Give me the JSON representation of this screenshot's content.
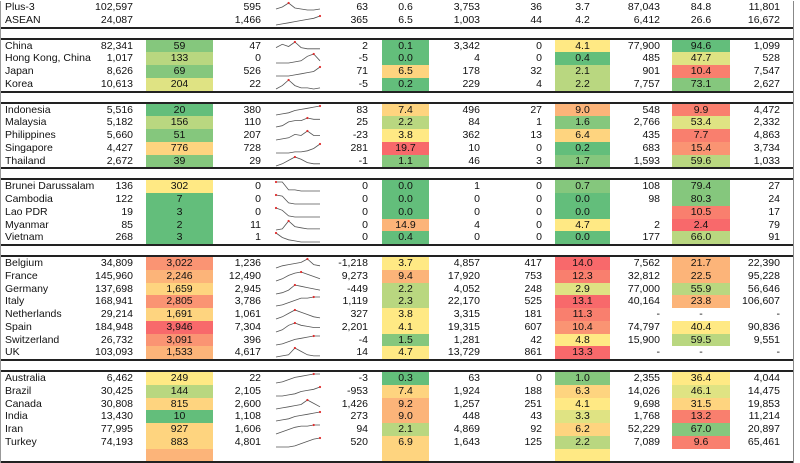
{
  "palette": {
    "G": "#63be7b",
    "G2": "#85c77d",
    "LG": "#b9d780",
    "Y2": "#dfe383",
    "Y": "#ffe984",
    "LO": "#fed47f",
    "O": "#fcb479",
    "O2": "#fa9473",
    "R2": "#f97f6e",
    "R": "#f8696b",
    "N": "#ffffff"
  },
  "groups": [
    [
      {
        "name": "Plus-3",
        "c1": "102,597",
        "c2": "",
        "k2": "N",
        "c3": "595",
        "c4": "63",
        "c5": "0.6",
        "k5": "N",
        "c6": "3,753",
        "c7": "36",
        "c8": "3.7",
        "k8": "N",
        "c9": "87,043",
        "c10": "84.8",
        "k10": "N",
        "c11": "11,801",
        "trend": [
          3,
          5,
          9,
          4,
          3,
          2,
          2,
          3
        ]
      },
      {
        "name": "ASEAN",
        "c1": "24,087",
        "c2": "",
        "k2": "N",
        "c3": "1,466",
        "c4": "365",
        "c5": "6.5",
        "k5": "N",
        "c6": "1,003",
        "c7": "44",
        "c8": "4.2",
        "k8": "N",
        "c9": "6,412",
        "c10": "26.6",
        "k10": "N",
        "c11": "16,672",
        "trend": [
          0,
          1,
          2,
          3,
          4,
          5,
          6,
          8
        ]
      }
    ],
    [
      {
        "name": "China",
        "c1": "82,341",
        "c2": "59",
        "k2": "G2",
        "c3": "47",
        "c4": "2",
        "c5": "0.1",
        "k5": "G",
        "c6": "3,342",
        "c7": "0",
        "c8": "4.1",
        "k8": "Y",
        "c9": "77,900",
        "c10": "94.6",
        "k10": "G",
        "c11": "1,099",
        "trend": [
          3,
          6,
          4,
          8,
          3,
          2,
          2,
          2
        ]
      },
      {
        "name": "Hong Kong, China",
        "c1": "1,017",
        "c2": "133",
        "k2": "LG",
        "c3": "0",
        "c4": "-5",
        "c5": "0.0",
        "k5": "G",
        "c6": "4",
        "c7": "0",
        "c8": "0.4",
        "k8": "G",
        "c9": "485",
        "c10": "47.7",
        "k10": "Y2",
        "c11": "528",
        "trend": [
          0,
          0,
          0,
          1,
          2,
          6,
          8,
          2
        ]
      },
      {
        "name": "Japan",
        "c1": "8,626",
        "c2": "69",
        "k2": "G2",
        "c3": "526",
        "c4": "71",
        "c5": "6.5",
        "k5": "LO",
        "c6": "178",
        "c7": "32",
        "c8": "2.1",
        "k8": "LG",
        "c9": "901",
        "c10": "10.4",
        "k10": "R2",
        "c11": "7,547",
        "trend": [
          0,
          0,
          0,
          1,
          2,
          3,
          4,
          8
        ]
      },
      {
        "name": "Korea",
        "c1": "10,613",
        "c2": "204",
        "k2": "Y2",
        "c3": "22",
        "c4": "-5",
        "c5": "0.2",
        "k5": "G",
        "c6": "229",
        "c7": "4",
        "c8": "2.2",
        "k8": "LG",
        "c9": "7,757",
        "c10": "73.1",
        "k10": "G2",
        "c11": "2,627",
        "trend": [
          0,
          3,
          8,
          3,
          1,
          1,
          0,
          1
        ]
      }
    ],
    [
      {
        "name": "Indonesia",
        "c1": "5,516",
        "c2": "20",
        "k2": "G",
        "c3": "380",
        "c4": "83",
        "c5": "7.4",
        "k5": "LO",
        "c6": "496",
        "c7": "27",
        "c8": "9.0",
        "k8": "O",
        "c9": "548",
        "c10": "9.9",
        "k10": "R2",
        "c11": "4,472",
        "trend": [
          0,
          1,
          2,
          4,
          5,
          6,
          7,
          8
        ]
      },
      {
        "name": "Malaysia",
        "c1": "5,182",
        "c2": "156",
        "k2": "LG",
        "c3": "110",
        "c4": "25",
        "c5": "2.2",
        "k5": "LG",
        "c6": "84",
        "c7": "1",
        "c8": "1.6",
        "k8": "G2",
        "c9": "2,766",
        "c10": "53.4",
        "k10": "Y2",
        "c11": "2,332",
        "trend": [
          0,
          1,
          4,
          5,
          5,
          7,
          6,
          6
        ]
      },
      {
        "name": "Philippines",
        "c1": "5,660",
        "c2": "51",
        "k2": "G2",
        "c3": "207",
        "c4": "-23",
        "c5": "3.8",
        "k5": "Y",
        "c6": "362",
        "c7": "13",
        "c8": "6.4",
        "k8": "LO",
        "c9": "435",
        "c10": "7.7",
        "k10": "R2",
        "c11": "4,863",
        "trend": [
          0,
          1,
          2,
          5,
          4,
          8,
          4,
          4
        ]
      },
      {
        "name": "Singapore",
        "c1": "4,427",
        "c2": "776",
        "k2": "LO",
        "c3": "728",
        "c4": "281",
        "c5": "19.7",
        "k5": "R",
        "c6": "10",
        "c7": "0",
        "c8": "0.2",
        "k8": "G",
        "c9": "683",
        "c10": "15.4",
        "k10": "O2",
        "c11": "3,734",
        "trend": [
          0,
          0,
          0,
          1,
          1,
          2,
          4,
          8
        ]
      },
      {
        "name": "Thailand",
        "c1": "2,672",
        "c2": "39",
        "k2": "G2",
        "c3": "29",
        "c4": "-1",
        "c5": "1.1",
        "k5": "G2",
        "c6": "46",
        "c7": "3",
        "c8": "1.7",
        "k8": "G2",
        "c9": "1,593",
        "c10": "59.6",
        "k10": "LG",
        "c11": "1,033",
        "trend": [
          0,
          2,
          5,
          8,
          6,
          3,
          2,
          2
        ]
      }
    ],
    [
      {
        "name": "Brunei Darussalam",
        "c1": "136",
        "c2": "302",
        "k2": "Y",
        "c3": "0",
        "c4": "0",
        "c5": "0.0",
        "k5": "G",
        "c6": "1",
        "c7": "0",
        "c8": "0.7",
        "k8": "G2",
        "c9": "108",
        "c10": "79.4",
        "k10": "G2",
        "c11": "27",
        "trend": [
          8,
          8,
          1,
          1,
          0,
          0,
          0,
          0
        ]
      },
      {
        "name": "Cambodia",
        "c1": "122",
        "c2": "7",
        "k2": "G",
        "c3": "0",
        "c4": "0",
        "c5": "0.0",
        "k5": "G",
        "c6": "0",
        "c7": "0",
        "c8": "0.0",
        "k8": "G",
        "c9": "98",
        "c10": "80.3",
        "k10": "G2",
        "c11": "24",
        "trend": [
          8,
          7,
          1,
          0,
          0,
          0,
          0,
          0
        ]
      },
      {
        "name": "Lao PDR",
        "c1": "19",
        "c2": "3",
        "k2": "G",
        "c3": "0",
        "c4": "0",
        "c5": "0.0",
        "k5": "G",
        "c6": "0",
        "c7": "0",
        "c8": "0.0",
        "k8": "G",
        "c9": "",
        "c10": "10.5",
        "k10": "R2",
        "c11": "17",
        "trend": [
          8,
          6,
          1,
          0,
          0,
          0,
          0,
          0
        ]
      },
      {
        "name": "Myanmar",
        "c1": "85",
        "c2": "2",
        "k2": "G",
        "c3": "11",
        "c4": "0",
        "c5": "14.9",
        "k5": "O",
        "c6": "4",
        "c7": "0",
        "c8": "4.7",
        "k8": "Y",
        "c9": "2",
        "c10": "2.4",
        "k10": "R",
        "c11": "79",
        "trend": [
          0,
          1,
          8,
          3,
          2,
          1,
          1,
          1
        ]
      },
      {
        "name": "Vietnam",
        "c1": "268",
        "c2": "3",
        "k2": "G",
        "c3": "1",
        "c4": "0",
        "c5": "0.4",
        "k5": "G",
        "c6": "0",
        "c7": "0",
        "c8": "0.0",
        "k8": "G",
        "c9": "177",
        "c10": "66.0",
        "k10": "LG",
        "c11": "91",
        "trend": [
          8,
          4,
          2,
          1,
          0,
          0,
          0,
          0
        ]
      }
    ],
    [
      {
        "name": "Belgium",
        "c1": "34,809",
        "c2": "3,022",
        "k2": "O2",
        "c3": "1,236",
        "c4": "-1,218",
        "c5": "3.7",
        "k5": "Y",
        "c6": "4,857",
        "c7": "417",
        "c8": "14.0",
        "k8": "R",
        "c9": "7,562",
        "c10": "21.7",
        "k10": "O",
        "c11": "22,390",
        "trend": [
          0,
          2,
          3,
          4,
          5,
          8,
          3,
          2
        ]
      },
      {
        "name": "France",
        "c1": "145,960",
        "c2": "2,246",
        "k2": "O",
        "c3": "12,490",
        "c4": "9,273",
        "c5": "9.4",
        "k5": "O",
        "c6": "17,920",
        "c7": "753",
        "c8": "12.3",
        "k8": "R2",
        "c9": "32,812",
        "c10": "22.5",
        "k10": "O",
        "c11": "95,228",
        "trend": [
          0,
          2,
          5,
          7,
          8,
          6,
          4,
          2
        ]
      },
      {
        "name": "Germany",
        "c1": "137,698",
        "c2": "1,659",
        "k2": "LO",
        "c3": "2,945",
        "c4": "-449",
        "c5": "2.2",
        "k5": "LG",
        "c6": "4,052",
        "c7": "248",
        "c8": "2.9",
        "k8": "Y2",
        "c9": "77,000",
        "c10": "55.9",
        "k10": "LG",
        "c11": "56,646",
        "trend": [
          0,
          1,
          3,
          7,
          6,
          5,
          4,
          3
        ]
      },
      {
        "name": "Italy",
        "c1": "168,941",
        "c2": "2,805",
        "k2": "O2",
        "c3": "3,786",
        "c4": "1,119",
        "c5": "2.3",
        "k5": "LG",
        "c6": "22,170",
        "c7": "525",
        "c8": "13.1",
        "k8": "R",
        "c9": "40,164",
        "c10": "23.8",
        "k10": "O",
        "c11": "106,607",
        "trend": [
          0,
          1,
          3,
          5,
          7,
          7,
          8,
          8
        ]
      },
      {
        "name": "Netherlands",
        "c1": "29,214",
        "c2": "1,691",
        "k2": "LO",
        "c3": "1,061",
        "c4": "327",
        "c5": "3.8",
        "k5": "Y",
        "c6": "3,315",
        "c7": "181",
        "c8": "11.3",
        "k8": "R2",
        "c9": "-",
        "c10": "-",
        "k10": "N",
        "c11": "-",
        "trend": [
          0,
          2,
          5,
          8,
          6,
          4,
          2,
          1
        ]
      },
      {
        "name": "Spain",
        "c1": "184,948",
        "c2": "3,946",
        "k2": "R",
        "c3": "7,304",
        "c4": "2,201",
        "c5": "4.1",
        "k5": "Y",
        "c6": "19,315",
        "c7": "607",
        "c8": "10.4",
        "k8": "O2",
        "c9": "74,797",
        "c10": "40.4",
        "k10": "Y",
        "c11": "90,836",
        "trend": [
          0,
          2,
          6,
          8,
          6,
          5,
          4,
          4
        ]
      },
      {
        "name": "Switzerland",
        "c1": "26,732",
        "c2": "3,091",
        "k2": "O2",
        "c3": "396",
        "c4": "-4",
        "c5": "1.5",
        "k5": "G2",
        "c6": "1,281",
        "c7": "42",
        "c8": "4.8",
        "k8": "Y",
        "c9": "15,900",
        "c10": "59.5",
        "k10": "LG",
        "c11": "9,551",
        "trend": [
          0,
          1,
          3,
          5,
          6,
          7,
          8,
          8
        ]
      },
      {
        "name": "UK",
        "c1": "103,093",
        "c2": "1,533",
        "k2": "O",
        "c3": "4,617",
        "c4": "14",
        "c5": "4.7",
        "k5": "Y",
        "c6": "13,729",
        "c7": "861",
        "c8": "13.3",
        "k8": "R",
        "c9": "-",
        "c10": "-",
        "k10": "N",
        "c11": "-",
        "trend": [
          0,
          1,
          2,
          8,
          5,
          2,
          1,
          1
        ]
      }
    ],
    [
      {
        "name": "Australia",
        "c1": "6,462",
        "c2": "249",
        "k2": "Y",
        "c3": "22",
        "c4": "-3",
        "c5": "0.3",
        "k5": "G",
        "c6": "63",
        "c7": "0",
        "c8": "1.0",
        "k8": "G2",
        "c9": "2,355",
        "c10": "36.4",
        "k10": "Y",
        "c11": "4,044",
        "trend": [
          0,
          1,
          3,
          5,
          6,
          7,
          8,
          8
        ]
      },
      {
        "name": "Brazil",
        "c1": "30,425",
        "c2": "144",
        "k2": "LG",
        "c3": "2,105",
        "c4": "-953",
        "c5": "7.4",
        "k5": "LO",
        "c6": "1,924",
        "c7": "188",
        "c8": "6.3",
        "k8": "LO",
        "c9": "14,026",
        "c10": "46.1",
        "k10": "Y2",
        "c11": "14,475",
        "trend": [
          0,
          0,
          1,
          2,
          4,
          5,
          6,
          8
        ]
      },
      {
        "name": "Canada",
        "c1": "30,808",
        "c2": "815",
        "k2": "LO",
        "c3": "2,600",
        "c4": "1,426",
        "c5": "9.2",
        "k5": "O",
        "c6": "1,257",
        "c7": "251",
        "c8": "4.1",
        "k8": "Y",
        "c9": "9,698",
        "c10": "31.5",
        "k10": "LO",
        "c11": "19,853",
        "trend": [
          0,
          1,
          2,
          3,
          4,
          8,
          5,
          2
        ]
      },
      {
        "name": "India",
        "c1": "13,430",
        "c2": "10",
        "k2": "G",
        "c3": "1,108",
        "c4": "273",
        "c5": "9.0",
        "k5": "O",
        "c6": "448",
        "c7": "43",
        "c8": "3.3",
        "k8": "Y2",
        "c9": "1,768",
        "c10": "13.2",
        "k10": "R2",
        "c11": "11,214",
        "trend": [
          0,
          1,
          2,
          4,
          5,
          6,
          7,
          8
        ]
      },
      {
        "name": "Iran",
        "c1": "77,995",
        "c2": "927",
        "k2": "LO",
        "c3": "1,606",
        "c4": "94",
        "c5": "2.1",
        "k5": "LG",
        "c6": "4,869",
        "c7": "92",
        "c8": "6.2",
        "k8": "LO",
        "c9": "52,229",
        "c10": "67.0",
        "k10": "G2",
        "c11": "20,897",
        "trend": [
          0,
          2,
          4,
          6,
          7,
          7,
          8,
          8
        ]
      },
      {
        "name": "Turkey",
        "c1": "74,193",
        "c2": "883",
        "k2": "LO",
        "c3": "4,801",
        "c4": "520",
        "c5": "6.9",
        "k5": "LO",
        "c6": "1,643",
        "c7": "125",
        "c8": "2.2",
        "k8": "LG",
        "c9": "7,089",
        "c10": "9.6",
        "k10": "R2",
        "c11": "65,461",
        "trend": [
          0,
          0,
          0,
          1,
          3,
          5,
          7,
          8
        ]
      },
      {
        "name": "",
        "c1": "",
        "c2": "",
        "k2": "O",
        "c3": "",
        "c4": "",
        "c5": "",
        "k5": "LO",
        "c6": "",
        "c7": "",
        "c8": "",
        "k8": "Y",
        "c9": "",
        "c10": "",
        "k10": "N",
        "c11": "",
        "trend": []
      }
    ]
  ]
}
